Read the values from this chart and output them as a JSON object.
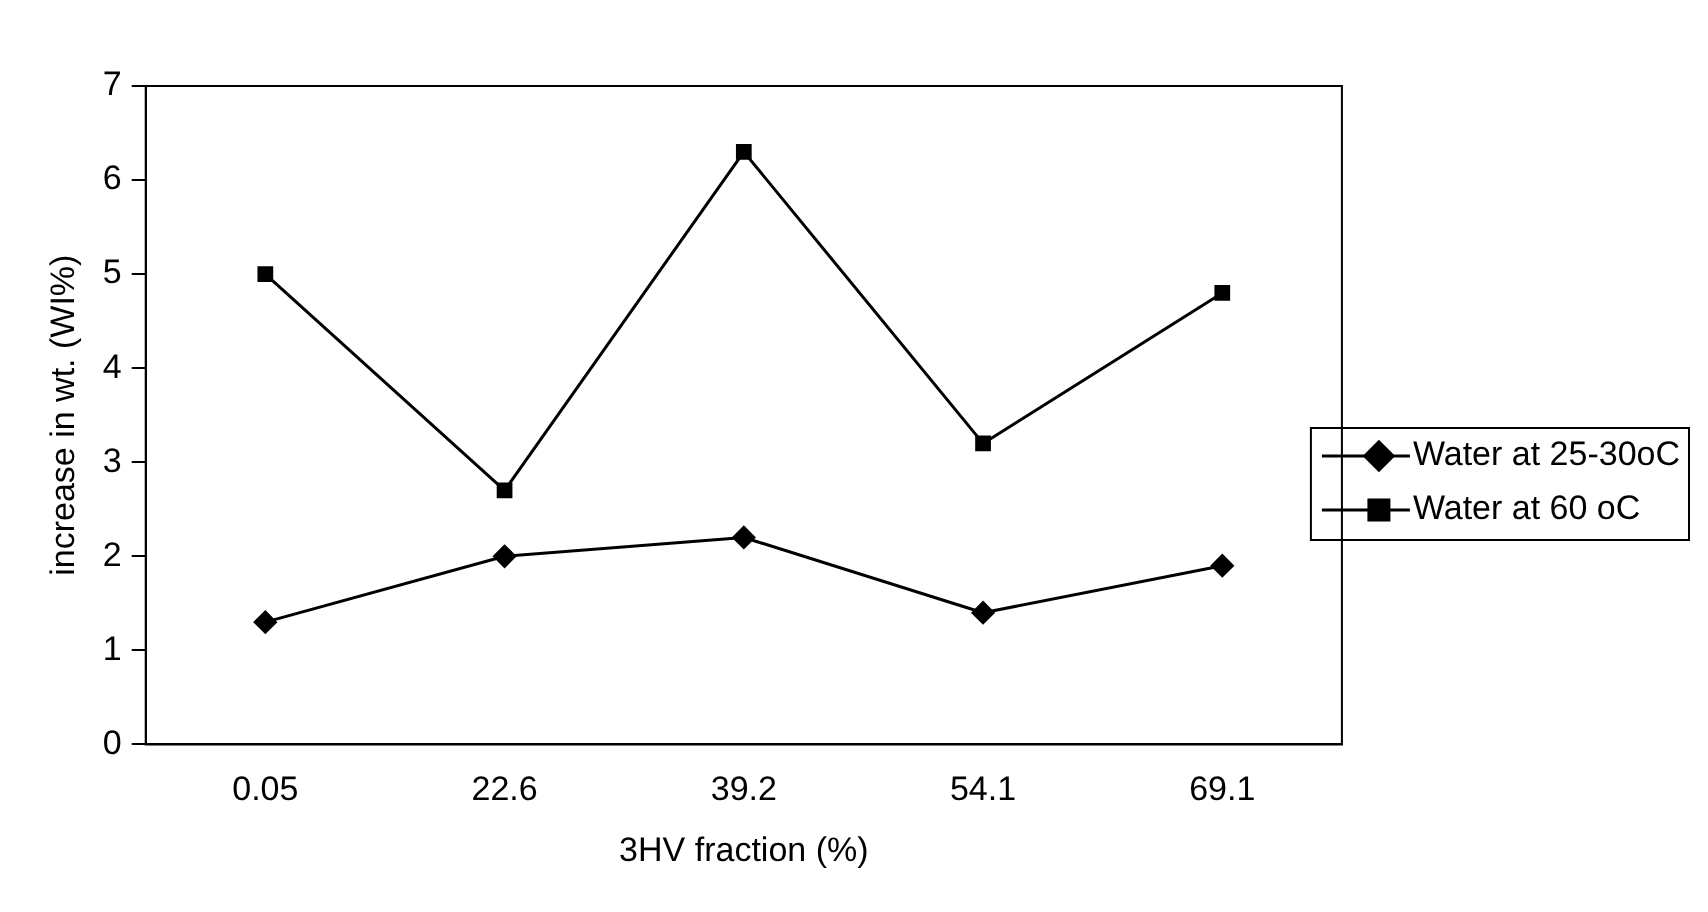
{
  "chart_data": {
    "type": "line",
    "xlabel": "3HV fraction (%)",
    "ylabel": "increase in wt. (WI%)",
    "categories": [
      "0.05",
      "22.6",
      "39.2",
      "54.1",
      "69.1"
    ],
    "series": [
      {
        "name": "Water at 25-30oC",
        "color": "#000000",
        "marker": "diamond",
        "values": [
          1.3,
          2.0,
          2.2,
          1.4,
          1.9
        ]
      },
      {
        "name": "Water at 60 oC",
        "color": "#000000",
        "marker": "square",
        "values": [
          5.0,
          2.7,
          6.3,
          3.2,
          4.8
        ]
      }
    ],
    "ylim": [
      0,
      7
    ],
    "yticks": [
      0,
      1,
      2,
      3,
      4,
      5,
      6,
      7
    ],
    "grid": false,
    "legend": "right",
    "line_style": "solid"
  }
}
